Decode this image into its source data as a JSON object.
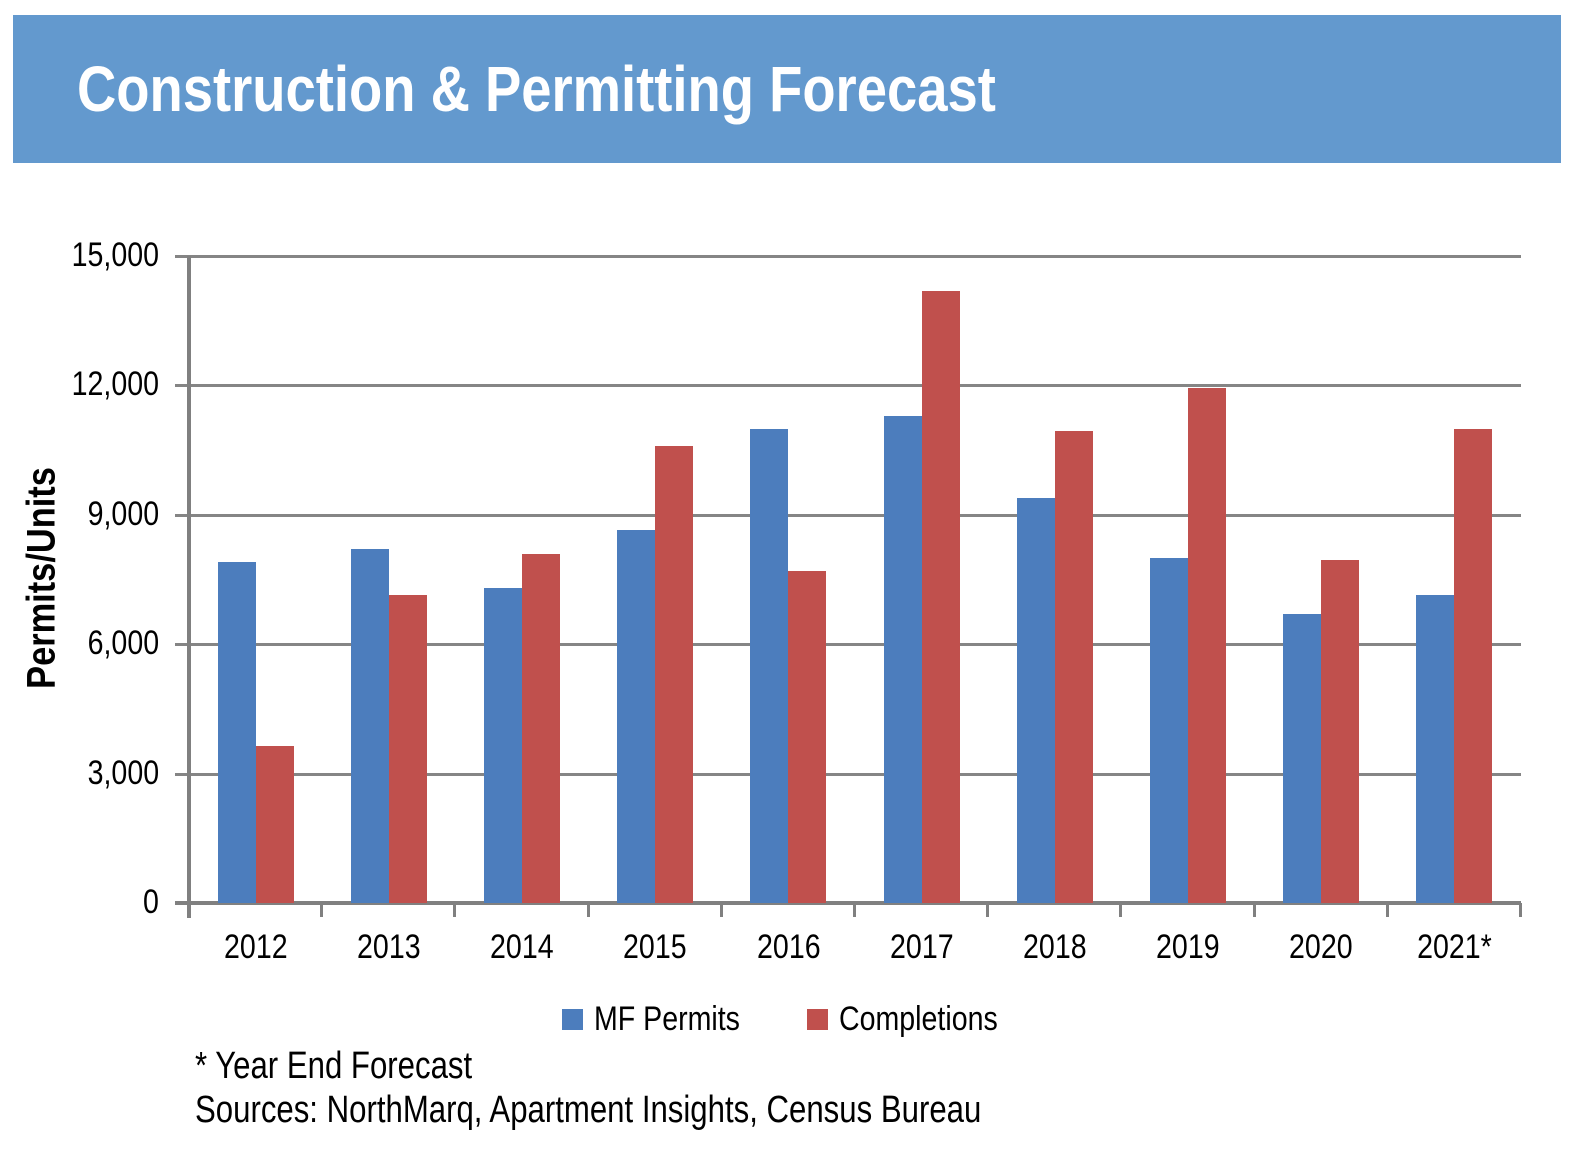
{
  "header": {
    "title": "Construction & Permitting Forecast",
    "bg_color": "#6399CE",
    "text_color": "#FFFFFF"
  },
  "chart_data": {
    "type": "bar",
    "title": "",
    "ylabel": "Permits/Units",
    "xlabel": "",
    "categories": [
      "2012",
      "2013",
      "2014",
      "2015",
      "2016",
      "2017",
      "2018",
      "2019",
      "2020",
      "2021*"
    ],
    "series": [
      {
        "name": "MF Permits",
        "color": "#4C7DBD",
        "values": [
          7900,
          8200,
          7300,
          8650,
          11000,
          11300,
          9400,
          8000,
          6700,
          7150
        ]
      },
      {
        "name": "Completions",
        "color": "#C0504D",
        "values": [
          3650,
          7150,
          8100,
          10600,
          7700,
          14200,
          10950,
          11950,
          7950,
          11000
        ]
      }
    ],
    "ylim": [
      0,
      15000
    ],
    "ytick_interval": 3000,
    "ytick_labels": [
      "0",
      "3,000",
      "6,000",
      "9,000",
      "12,000",
      "15,000"
    ],
    "grid": "horizontal",
    "gridline_color": "#858585",
    "axis_color": "#808080",
    "legend_position": "bottom"
  },
  "footnotes": {
    "line1": "* Year End Forecast",
    "line2": "Sources: NorthMarq, Apartment Insights, Census Bureau"
  }
}
